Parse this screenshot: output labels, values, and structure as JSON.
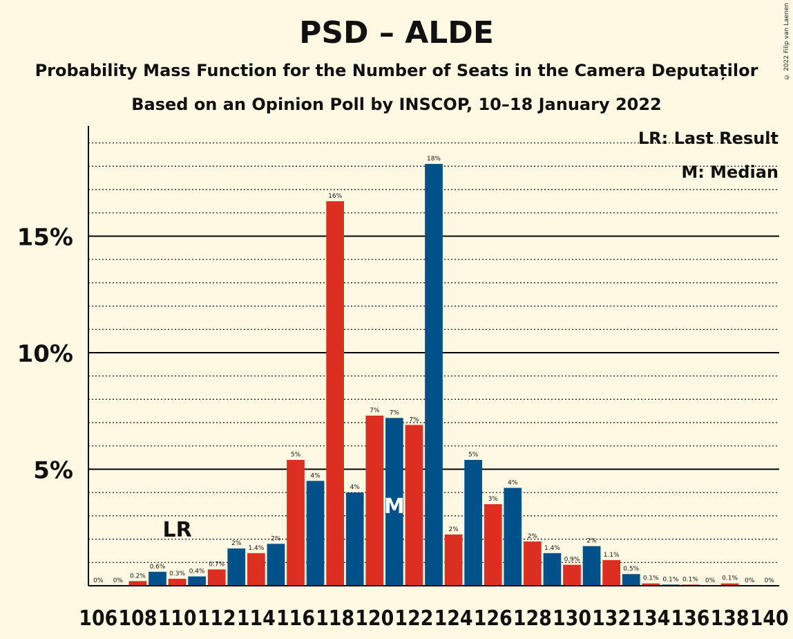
{
  "title": "PSD – ALDE",
  "subtitle": "Probability Mass Function for the Number of Seats in the Camera Deputaților",
  "subtitle2": "Based on an Opinion Poll by INSCOP, 10–18 January 2022",
  "copyright": "© 2022 Filip van Laenen",
  "legend": {
    "last_result": "LR: Last Result",
    "median": "M: Median"
  },
  "colors": {
    "red": "#DD2E22",
    "blue": "#005189",
    "background": "#FFF9E3"
  },
  "chart_data": {
    "type": "bar",
    "x": [
      106,
      107,
      108,
      109,
      110,
      111,
      112,
      113,
      114,
      115,
      116,
      117,
      118,
      119,
      120,
      121,
      122,
      123,
      124,
      125,
      126,
      127,
      128,
      129,
      130,
      131,
      132,
      133,
      134,
      135,
      136,
      137,
      138,
      139,
      140
    ],
    "values": [
      0,
      0,
      0.2,
      0.6,
      0.3,
      0.4,
      0.7,
      1.6,
      1.4,
      1.8,
      5.4,
      4.5,
      16.5,
      4.0,
      7.3,
      7.2,
      6.9,
      18.1,
      2.2,
      5.4,
      3.5,
      4.2,
      1.9,
      1.4,
      0.9,
      1.7,
      1.1,
      0.5,
      0.1,
      0.05,
      0.05,
      0,
      0.1,
      0,
      0
    ],
    "labels": [
      "0%",
      "0%",
      "0.2%",
      "0.6%",
      "0.3%",
      "0.4%",
      "0.7%",
      "2%",
      "1.4%",
      "2%",
      "5%",
      "4%",
      "16%",
      "4%",
      "7%",
      "7%",
      "7%",
      "18%",
      "2%",
      "5%",
      "3%",
      "4%",
      "2%",
      "1.4%",
      "0.9%",
      "2%",
      "1.1%",
      "0.5%",
      "0.1%",
      "0.1%",
      "0.1%",
      "0%",
      "0.1%",
      "0%",
      "0%"
    ],
    "xticks": [
      "106",
      "108",
      "110",
      "112",
      "114",
      "116",
      "118",
      "120",
      "122",
      "124",
      "126",
      "128",
      "130",
      "132",
      "134",
      "136",
      "138",
      "140"
    ],
    "yticks": [
      "5%",
      "10%",
      "15%"
    ],
    "ylim": [
      0,
      20
    ],
    "last_result": {
      "seat": 110,
      "label": "LR"
    },
    "median": {
      "seat": 121,
      "label": "M"
    },
    "legend_placement": "top-right",
    "grid": true
  }
}
